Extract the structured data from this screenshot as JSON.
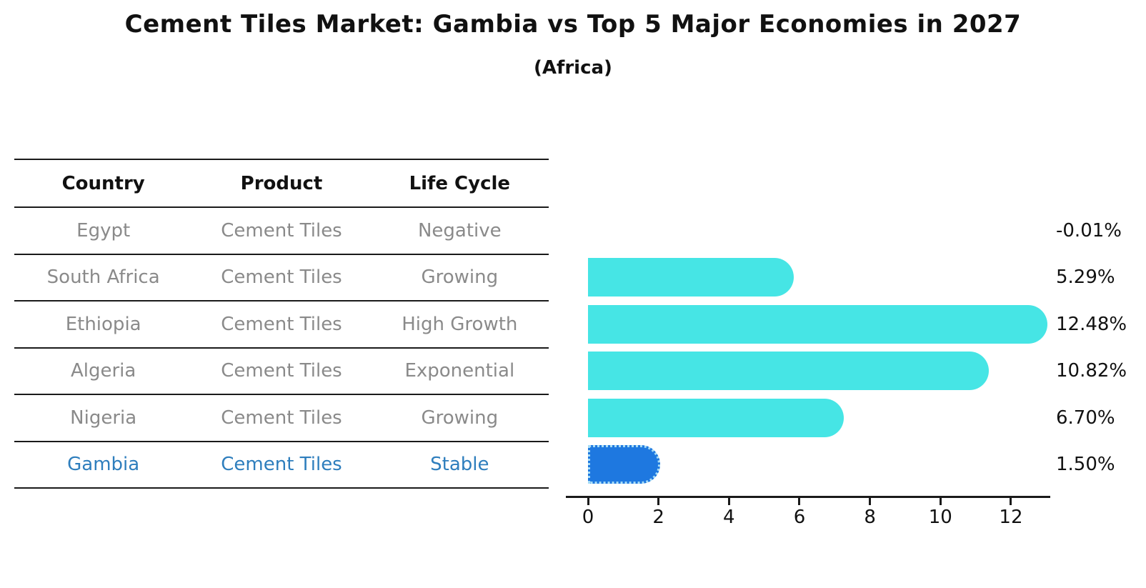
{
  "title": "Cement Tiles Market: Gambia vs Top 5 Major Economies in 2027",
  "subtitle": "(Africa)",
  "table": {
    "headers": [
      "Country",
      "Product",
      "Life Cycle"
    ],
    "rows": [
      {
        "country": "Egypt",
        "product": "Cement Tiles",
        "life_cycle": "Negative",
        "highlight": false
      },
      {
        "country": "South Africa",
        "product": "Cement Tiles",
        "life_cycle": "Growing",
        "highlight": false
      },
      {
        "country": "Ethiopia",
        "product": "Cement Tiles",
        "life_cycle": "High Growth",
        "highlight": false
      },
      {
        "country": "Algeria",
        "product": "Cement Tiles",
        "life_cycle": "Exponential",
        "highlight": false
      },
      {
        "country": "Nigeria",
        "product": "Cement Tiles",
        "life_cycle": "Growing",
        "highlight": false
      },
      {
        "country": "Gambia",
        "product": "Cement Tiles",
        "life_cycle": "Stable",
        "highlight": true
      }
    ]
  },
  "chart_data": {
    "type": "bar",
    "orientation": "horizontal",
    "title": "Cement Tiles Market: Gambia vs Top 5 Major Economies in 2027",
    "subtitle": "(Africa)",
    "categories": [
      "Egypt",
      "South Africa",
      "Ethiopia",
      "Algeria",
      "Nigeria",
      "Gambia"
    ],
    "values": [
      -0.01,
      5.29,
      12.48,
      10.82,
      6.7,
      1.5
    ],
    "value_labels": [
      "-0.01%",
      "5.29%",
      "12.48%",
      "10.82%",
      "6.70%",
      "1.50%"
    ],
    "xlabel": "",
    "ylabel": "",
    "x_ticks": [
      0,
      2,
      4,
      6,
      8,
      10,
      12
    ],
    "xlim": [
      -0.6,
      13.1
    ],
    "grid": false,
    "legend": false,
    "highlight_index": 5,
    "colors": {
      "bar": "#46E5E5",
      "highlight_bar": "#1E78E0",
      "highlight_bar_border": "#A6DCF6",
      "highlight_text": "#2E7EBD",
      "muted_text": "#8A8A8A",
      "text": "#111111",
      "line": "#1A1A1A"
    }
  }
}
